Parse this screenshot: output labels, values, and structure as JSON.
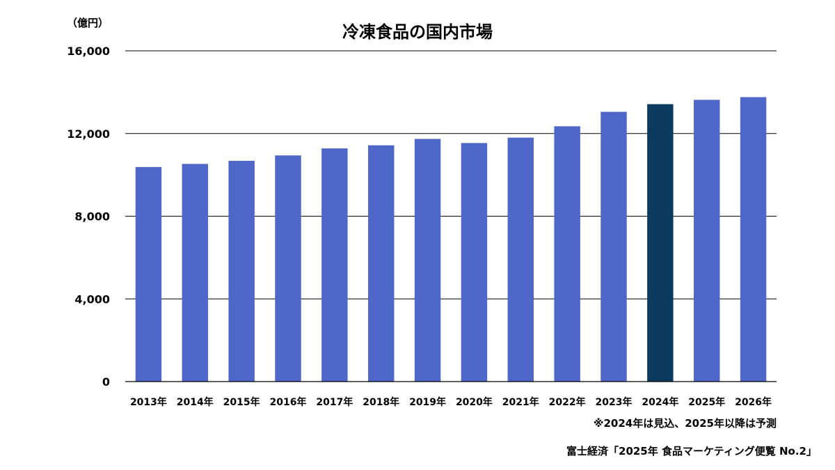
{
  "chart_data": {
    "type": "bar",
    "title": "冷凍食品の国内市場",
    "unit_label": "（億円）",
    "categories": [
      "2013年",
      "2014年",
      "2015年",
      "2016年",
      "2017年",
      "2018年",
      "2019年",
      "2020年",
      "2021年",
      "2022年",
      "2023年",
      "2024年",
      "2025年",
      "2026年"
    ],
    "values": [
      10380,
      10530,
      10680,
      10940,
      11280,
      11430,
      11740,
      11540,
      11800,
      12350,
      13050,
      13420,
      13630,
      13760
    ],
    "ylim": [
      0,
      16000
    ],
    "yticks": [
      0,
      4000,
      8000,
      12000,
      16000
    ],
    "ytick_labels": [
      "0",
      "4,000",
      "8,000",
      "12,000",
      "16,000"
    ],
    "grid": true,
    "highlight_category": "2024年",
    "colors": {
      "bar": "#4f67c8",
      "highlight": "#0a3a5e",
      "grid": "#000000"
    },
    "note": "※2024年は見込、2025年以降は予測",
    "source": "富士経済「2025年 食品マーケティング便覧 No.2」"
  }
}
